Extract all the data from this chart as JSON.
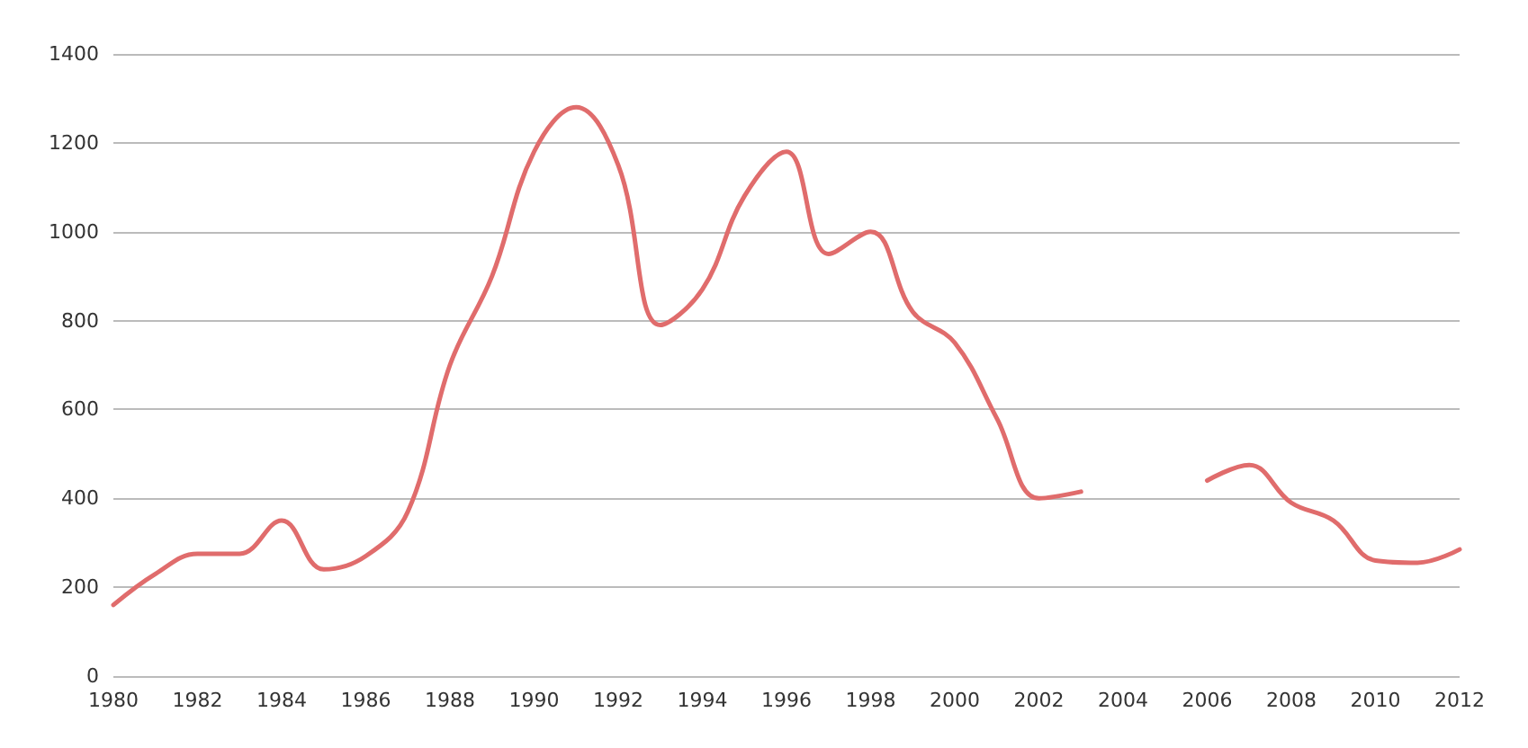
{
  "chart_data": {
    "type": "line",
    "x": [
      1980,
      1981,
      1982,
      1983,
      1984,
      1985,
      1986,
      1987,
      1988,
      1989,
      1990,
      1991,
      1992,
      1993,
      1994,
      1995,
      1996,
      1997,
      1998,
      1999,
      2000,
      2001,
      2002,
      2003,
      2004,
      2005,
      2006,
      2007,
      2008,
      2009,
      2010,
      2011,
      2012
    ],
    "series": [
      {
        "color": "#e06c6c",
        "values": [
          160,
          230,
          275,
          275,
          350,
          240,
          270,
          370,
          700,
          900,
          1180,
          1280,
          1150,
          790,
          870,
          1080,
          1180,
          950,
          1000,
          820,
          750,
          580,
          400,
          415,
          null,
          null,
          440,
          475,
          390,
          350,
          260,
          255,
          285
        ]
      }
    ],
    "xlim": [
      1980,
      2012
    ],
    "xticks": [
      1980,
      1982,
      1984,
      1986,
      1988,
      1990,
      1992,
      1994,
      1996,
      1998,
      2000,
      2002,
      2004,
      2006,
      2008,
      2010,
      2012
    ],
    "ylim": [
      0,
      1400
    ],
    "yticks": [
      0,
      200,
      400,
      600,
      800,
      1000,
      1200,
      1400
    ],
    "grid": "y",
    "marker": "none",
    "line_style": "solid"
  }
}
